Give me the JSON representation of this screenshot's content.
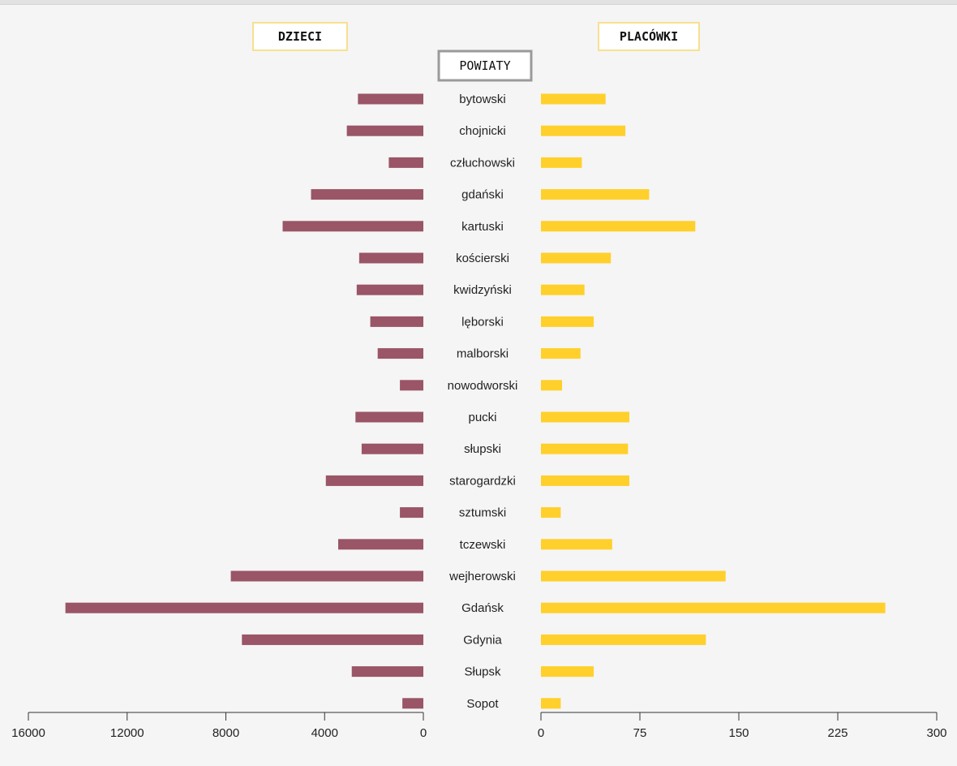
{
  "chart_data": {
    "type": "bar",
    "layout": "butterfly",
    "left_title": "DZIECI",
    "right_title": "PLACÓWKI",
    "center_title": "POWIATY",
    "categories": [
      "bytowski",
      "chojnicki",
      "człuchowski",
      "gdański",
      "kartuski",
      "kościerski",
      "kwidzyński",
      "lęborski",
      "malborski",
      "nowodworski",
      "pucki",
      "słupski",
      "starogardzki",
      "sztumski",
      "tczewski",
      "wejherowski",
      "Gdańsk",
      "Gdynia",
      "Słupsk",
      "Sopot"
    ],
    "series": [
      {
        "name": "DZIECI",
        "values": [
          2650,
          3100,
          1400,
          4550,
          5700,
          2600,
          2700,
          2150,
          1850,
          950,
          2750,
          2500,
          3950,
          950,
          3450,
          7800,
          14500,
          7350,
          2900,
          850
        ],
        "xlim": [
          16000,
          0
        ],
        "ticks": [
          16000,
          12000,
          8000,
          4000,
          0
        ],
        "color": "#9a5567"
      },
      {
        "name": "PLACÓWKI",
        "values": [
          49,
          64,
          31,
          82,
          117,
          53,
          33,
          40,
          30,
          16,
          67,
          66,
          67,
          15,
          54,
          140,
          261,
          125,
          40,
          15
        ],
        "xlim": [
          0,
          300
        ],
        "ticks": [
          0,
          75,
          150,
          225,
          300
        ],
        "color": "#ffd02b"
      }
    ]
  }
}
